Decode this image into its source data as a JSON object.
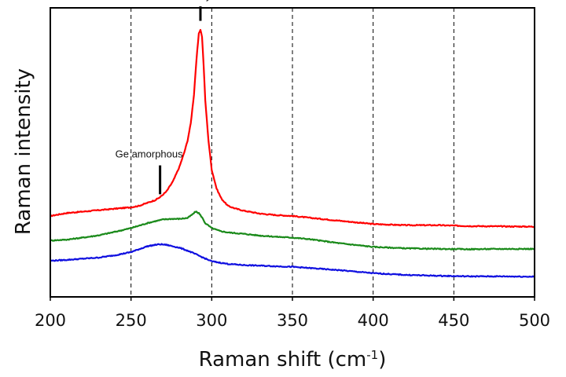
{
  "chart_data": {
    "type": "line",
    "title": "",
    "xlabel": "Raman shift (cm",
    "xlabel_sup": "-1",
    "xlabel_close": ")",
    "ylabel": "Raman intensity",
    "xlim": [
      200,
      500
    ],
    "ylim": [
      0,
      100
    ],
    "x_ticks": [
      200,
      250,
      300,
      350,
      400,
      450,
      500
    ],
    "x_tick_labels": [
      "200",
      "250",
      "300",
      "350",
      "400",
      "450",
      "500"
    ],
    "y_ticks_shown": false,
    "vertical_gridlines": [
      250,
      300,
      350,
      400,
      450
    ],
    "grid_style": "dashed",
    "legend": "none",
    "series": [
      {
        "color": "#ff0000",
        "x": [
          200,
          210,
          220,
          230,
          240,
          250,
          255,
          260,
          265,
          268,
          272,
          276,
          280,
          283,
          285,
          287,
          289,
          290,
          291,
          292,
          293,
          294,
          295,
          296,
          298,
          300,
          303,
          306,
          310,
          315,
          320,
          330,
          340,
          350,
          360,
          380,
          400,
          420,
          440,
          460,
          480,
          500
        ],
        "y": [
          28,
          29,
          29.5,
          30,
          30.5,
          31,
          31.5,
          32.5,
          33.5,
          34.5,
          36.5,
          40,
          45,
          50,
          54,
          60,
          70,
          78,
          85,
          91,
          92.5,
          90,
          80,
          68,
          54,
          44,
          37.5,
          34,
          31.5,
          30.5,
          29.8,
          28.8,
          28.3,
          28,
          27.4,
          26.3,
          25.2,
          24.8,
          24.8,
          24.5,
          24.4,
          24.3
        ]
      },
      {
        "color": "#1a8a1a",
        "x": [
          200,
          210,
          220,
          230,
          240,
          250,
          260,
          265,
          270,
          275,
          280,
          285,
          288,
          290,
          292,
          294,
          296,
          300,
          305,
          310,
          320,
          330,
          340,
          350,
          360,
          380,
          400,
          420,
          440,
          460,
          480,
          500
        ],
        "y": [
          19.5,
          19.8,
          20.5,
          21.3,
          22.5,
          23.8,
          25.5,
          26.2,
          26.8,
          27,
          27,
          27.3,
          28.5,
          29.5,
          29,
          27.5,
          25.5,
          23.8,
          22.8,
          22.3,
          21.8,
          21.2,
          20.8,
          20.5,
          20,
          18.5,
          17.3,
          16.8,
          16.6,
          16.5,
          16.6,
          16.6
        ]
      },
      {
        "color": "#1010e0",
        "x": [
          200,
          210,
          220,
          230,
          240,
          250,
          255,
          260,
          265,
          268,
          272,
          276,
          280,
          285,
          290,
          295,
          300,
          310,
          320,
          330,
          340,
          350,
          360,
          380,
          400,
          420,
          440,
          460,
          480,
          500
        ],
        "y": [
          12.5,
          12.8,
          13.2,
          13.6,
          14.4,
          15.5,
          16.5,
          17.5,
          18,
          18.2,
          18,
          17.5,
          17,
          16,
          14.8,
          13.5,
          12.3,
          11.4,
          11,
          10.8,
          10.6,
          10.4,
          10,
          9.2,
          8.2,
          7.6,
          7.3,
          7.1,
          7.1,
          7
        ]
      }
    ],
    "annotations": [
      {
        "text": "Ge Crystal",
        "x": 293,
        "marker_top": 95.5,
        "marker_bottom": 100.5
      },
      {
        "text": "Ge amorphous",
        "x": 268,
        "marker_top": 35.5,
        "marker_bottom": 45.5
      }
    ]
  }
}
